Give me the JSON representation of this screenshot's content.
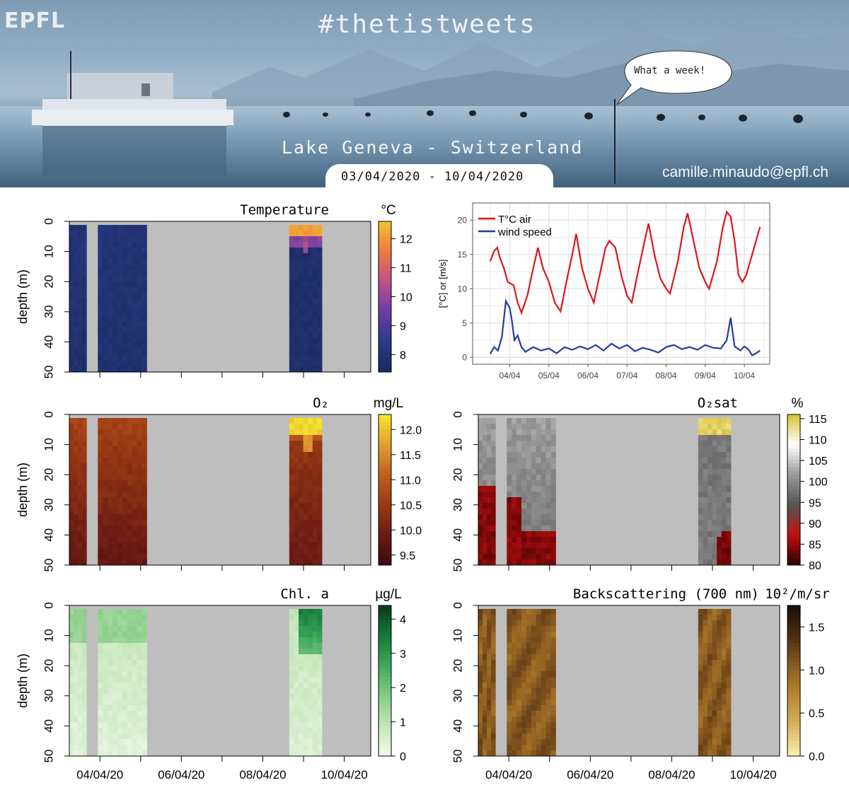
{
  "header": {
    "logo": "EPFL",
    "hashtag": "#thetistweets",
    "bubble_text": "What a week!",
    "subtitle": "Lake Geneva - Switzerland",
    "date_range": "03/04/2020 - 10/04/2020",
    "email": "camille.minaudo@epfl.ch"
  },
  "colors": {
    "temperature": [
      "#1a2a5e",
      "#2a3a88",
      "#6a3ea5",
      "#c0508a",
      "#ee7a40",
      "#f5c42f"
    ],
    "oxygen": [
      "#3a0a12",
      "#6a1a14",
      "#9a3a14",
      "#c06020",
      "#e0a030",
      "#f5e62e"
    ],
    "o2sat": [
      "#2a0000",
      "#c01010",
      "#555555",
      "#9a9a9a",
      "#ffffff",
      "#d8bf2a"
    ],
    "chl": [
      "#f2faee",
      "#c4e6b9",
      "#87cc86",
      "#3faa5c",
      "#137a3a",
      "#0a3a1e"
    ],
    "backscatter": [
      "#f8f2b0",
      "#d8b460",
      "#b88830",
      "#8a5a20",
      "#4a2c10",
      "#1a1008"
    ],
    "air_line": "#e0141e",
    "wind_line": "#1f3f9e",
    "no_data": "#bebebe"
  },
  "chart_data": [
    {
      "type": "heatmap",
      "title": "Temperature",
      "unit": "°C",
      "ylabel": "depth (m)",
      "y_ticks": [
        "0",
        "10",
        "20",
        "30",
        "40",
        "50"
      ],
      "ylim": [
        50,
        0
      ],
      "x_ticks": [],
      "x_range_days": [
        3.4,
        10.8
      ],
      "data_segments": [
        [
          3.4,
          3.82
        ],
        [
          4.1,
          5.3
        ],
        [
          8.8,
          9.6
        ]
      ],
      "color_ticks": [
        "8",
        "9",
        "10",
        "11",
        "12"
      ],
      "color_range": [
        7.4,
        12.6
      ],
      "palette": "temperature"
    },
    {
      "type": "line",
      "ylabel": "[°C] or [m/s]",
      "y_ticks": [
        "0",
        "5",
        "10",
        "15",
        "20"
      ],
      "ylim": [
        -1,
        22.5
      ],
      "x_ticks": [
        "04/04",
        "05/04",
        "06/04",
        "07/04",
        "08/04",
        "09/04",
        "10/04"
      ],
      "x_range_days": [
        3.2,
        10.8
      ],
      "grid": true,
      "legend": "top-left",
      "series": [
        {
          "name": "T°C air",
          "color": "air_line",
          "points": [
            [
              3.5,
              14
            ],
            [
              3.6,
              15.5
            ],
            [
              3.68,
              16
            ],
            [
              3.75,
              14.5
            ],
            [
              3.85,
              13
            ],
            [
              3.95,
              11
            ],
            [
              4.1,
              10.5
            ],
            [
              4.2,
              8
            ],
            [
              4.3,
              6.5
            ],
            [
              4.45,
              9
            ],
            [
              4.6,
              13
            ],
            [
              4.72,
              16
            ],
            [
              4.85,
              13
            ],
            [
              5.0,
              11
            ],
            [
              5.15,
              8
            ],
            [
              5.3,
              6.7
            ],
            [
              5.45,
              11
            ],
            [
              5.6,
              15
            ],
            [
              5.7,
              18
            ],
            [
              5.85,
              13
            ],
            [
              6.0,
              10
            ],
            [
              6.15,
              8
            ],
            [
              6.3,
              12
            ],
            [
              6.45,
              16
            ],
            [
              6.55,
              17
            ],
            [
              6.7,
              16
            ],
            [
              6.85,
              12
            ],
            [
              7.0,
              9
            ],
            [
              7.12,
              8
            ],
            [
              7.3,
              13
            ],
            [
              7.45,
              17
            ],
            [
              7.55,
              19.5
            ],
            [
              7.7,
              15
            ],
            [
              7.85,
              11.5
            ],
            [
              8.0,
              10
            ],
            [
              8.1,
              9.3
            ],
            [
              8.3,
              14
            ],
            [
              8.45,
              19
            ],
            [
              8.55,
              21
            ],
            [
              8.7,
              17
            ],
            [
              8.85,
              13
            ],
            [
              9.0,
              11
            ],
            [
              9.1,
              10
            ],
            [
              9.3,
              14
            ],
            [
              9.45,
              19
            ],
            [
              9.55,
              21.2
            ],
            [
              9.65,
              20.5
            ],
            [
              9.75,
              17
            ],
            [
              9.85,
              12
            ],
            [
              9.95,
              11
            ],
            [
              10.05,
              12
            ],
            [
              10.25,
              16
            ],
            [
              10.4,
              19
            ]
          ]
        },
        {
          "name": "wind speed",
          "color": "wind_line",
          "points": [
            [
              3.5,
              0.5
            ],
            [
              3.6,
              1.5
            ],
            [
              3.7,
              1
            ],
            [
              3.8,
              3
            ],
            [
              3.9,
              8.2
            ],
            [
              4.0,
              7.2
            ],
            [
              4.05,
              5.5
            ],
            [
              4.12,
              2.5
            ],
            [
              4.2,
              3.2
            ],
            [
              4.3,
              1.5
            ],
            [
              4.4,
              0.8
            ],
            [
              4.6,
              1.5
            ],
            [
              4.8,
              1
            ],
            [
              5.0,
              1.3
            ],
            [
              5.2,
              0.6
            ],
            [
              5.4,
              1.5
            ],
            [
              5.6,
              1.1
            ],
            [
              5.8,
              1.6
            ],
            [
              6.0,
              1.2
            ],
            [
              6.2,
              1.8
            ],
            [
              6.4,
              1
            ],
            [
              6.6,
              2
            ],
            [
              6.8,
              1.3
            ],
            [
              7.0,
              1.8
            ],
            [
              7.2,
              0.9
            ],
            [
              7.4,
              1.4
            ],
            [
              7.6,
              1.1
            ],
            [
              7.8,
              0.7
            ],
            [
              8.0,
              1.5
            ],
            [
              8.2,
              1.8
            ],
            [
              8.4,
              1.2
            ],
            [
              8.6,
              1.5
            ],
            [
              8.8,
              1.1
            ],
            [
              9.0,
              1.8
            ],
            [
              9.2,
              1.4
            ],
            [
              9.4,
              1.3
            ],
            [
              9.55,
              2.5
            ],
            [
              9.65,
              5.8
            ],
            [
              9.75,
              1.6
            ],
            [
              9.9,
              1
            ],
            [
              10.0,
              1.6
            ],
            [
              10.1,
              1.2
            ],
            [
              10.2,
              0.3
            ],
            [
              10.3,
              0.6
            ],
            [
              10.4,
              1
            ]
          ]
        }
      ]
    },
    {
      "type": "heatmap",
      "title": "O₂",
      "unit": "mg/L",
      "ylabel": "depth (m)",
      "y_ticks": [
        "0",
        "10",
        "20",
        "30",
        "40",
        "50"
      ],
      "ylim": [
        50,
        0
      ],
      "x_ticks": [],
      "x_range_days": [
        3.4,
        10.8
      ],
      "data_segments": [
        [
          3.4,
          3.82
        ],
        [
          4.1,
          5.3
        ],
        [
          8.8,
          9.6
        ]
      ],
      "color_ticks": [
        "9.5",
        "10.0",
        "10.5",
        "11.0",
        "11.5",
        "12.0"
      ],
      "color_range": [
        9.3,
        12.3
      ],
      "palette": "oxygen"
    },
    {
      "type": "heatmap",
      "title": "O₂sat",
      "unit": "%",
      "ylabel": "",
      "y_ticks": [
        "0",
        "10",
        "20",
        "30",
        "40",
        "50"
      ],
      "ylim": [
        50,
        0
      ],
      "x_ticks": [],
      "x_range_days": [
        3.4,
        10.8
      ],
      "data_segments": [
        [
          3.4,
          3.82
        ],
        [
          4.1,
          5.3
        ],
        [
          8.8,
          9.6
        ]
      ],
      "color_ticks": [
        "80",
        "85",
        "90",
        "95",
        "100",
        "105",
        "110",
        "115"
      ],
      "color_range": [
        80,
        116
      ],
      "palette": "o2sat"
    },
    {
      "type": "heatmap",
      "title": "Chl. a",
      "unit": "µg/L",
      "ylabel": "depth (m)",
      "y_ticks": [
        "0",
        "10",
        "20",
        "30",
        "40",
        "50"
      ],
      "ylim": [
        50,
        0
      ],
      "x_ticks": [
        "04/04/20",
        "06/04/20",
        "08/04/20",
        "10/04/20"
      ],
      "x_range_days": [
        3.4,
        10.8
      ],
      "data_segments": [
        [
          3.4,
          3.82
        ],
        [
          4.1,
          5.3
        ],
        [
          8.8,
          9.6
        ]
      ],
      "color_ticks": [
        "0",
        "1",
        "2",
        "3",
        "4"
      ],
      "color_range": [
        0,
        4.4
      ],
      "palette": "chl"
    },
    {
      "type": "heatmap",
      "title": "Backscattering (700 nm)",
      "unit": "10²/m/sr",
      "ylabel": "",
      "y_ticks": [
        "0",
        "10",
        "20",
        "30",
        "40",
        "50"
      ],
      "ylim": [
        50,
        0
      ],
      "x_ticks": [
        "04/04/20",
        "06/04/20",
        "08/04/20",
        "10/04/20"
      ],
      "x_range_days": [
        3.4,
        10.8
      ],
      "data_segments": [
        [
          3.4,
          3.82
        ],
        [
          4.1,
          5.3
        ],
        [
          8.8,
          9.6
        ]
      ],
      "color_ticks": [
        "0.0",
        "0.5",
        "1.0",
        "1.5"
      ],
      "color_range": [
        0,
        1.75
      ],
      "palette": "backscatter"
    }
  ]
}
